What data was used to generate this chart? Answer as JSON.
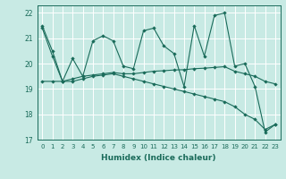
{
  "xlabel": "Humidex (Indice chaleur)",
  "background_color": "#c8eae4",
  "grid_color": "#b0d8d0",
  "line_color": "#1a6b5a",
  "xlim": [
    -0.5,
    23.5
  ],
  "ylim": [
    17,
    22.3
  ],
  "yticks": [
    17,
    18,
    19,
    20,
    21,
    22
  ],
  "xticks": [
    0,
    1,
    2,
    3,
    4,
    5,
    6,
    7,
    8,
    9,
    10,
    11,
    12,
    13,
    14,
    15,
    16,
    17,
    18,
    19,
    20,
    21,
    22,
    23
  ],
  "series1": [
    21.5,
    20.5,
    19.3,
    20.2,
    19.5,
    20.9,
    21.1,
    20.9,
    19.9,
    19.8,
    21.3,
    21.4,
    20.7,
    20.4,
    19.1,
    21.5,
    20.3,
    21.9,
    22.0,
    19.9,
    20.0,
    19.1,
    17.3,
    17.6
  ],
  "series2": [
    19.3,
    19.3,
    19.3,
    19.4,
    19.5,
    19.55,
    19.6,
    19.65,
    19.6,
    19.6,
    19.65,
    19.7,
    19.72,
    19.75,
    19.76,
    19.8,
    19.82,
    19.85,
    19.88,
    19.7,
    19.6,
    19.5,
    19.3,
    19.2
  ],
  "series3": [
    21.4,
    20.3,
    19.3,
    19.3,
    19.4,
    19.5,
    19.55,
    19.6,
    19.5,
    19.4,
    19.3,
    19.2,
    19.1,
    19.0,
    18.9,
    18.8,
    18.7,
    18.6,
    18.5,
    18.3,
    18.0,
    17.8,
    17.4,
    17.6
  ]
}
